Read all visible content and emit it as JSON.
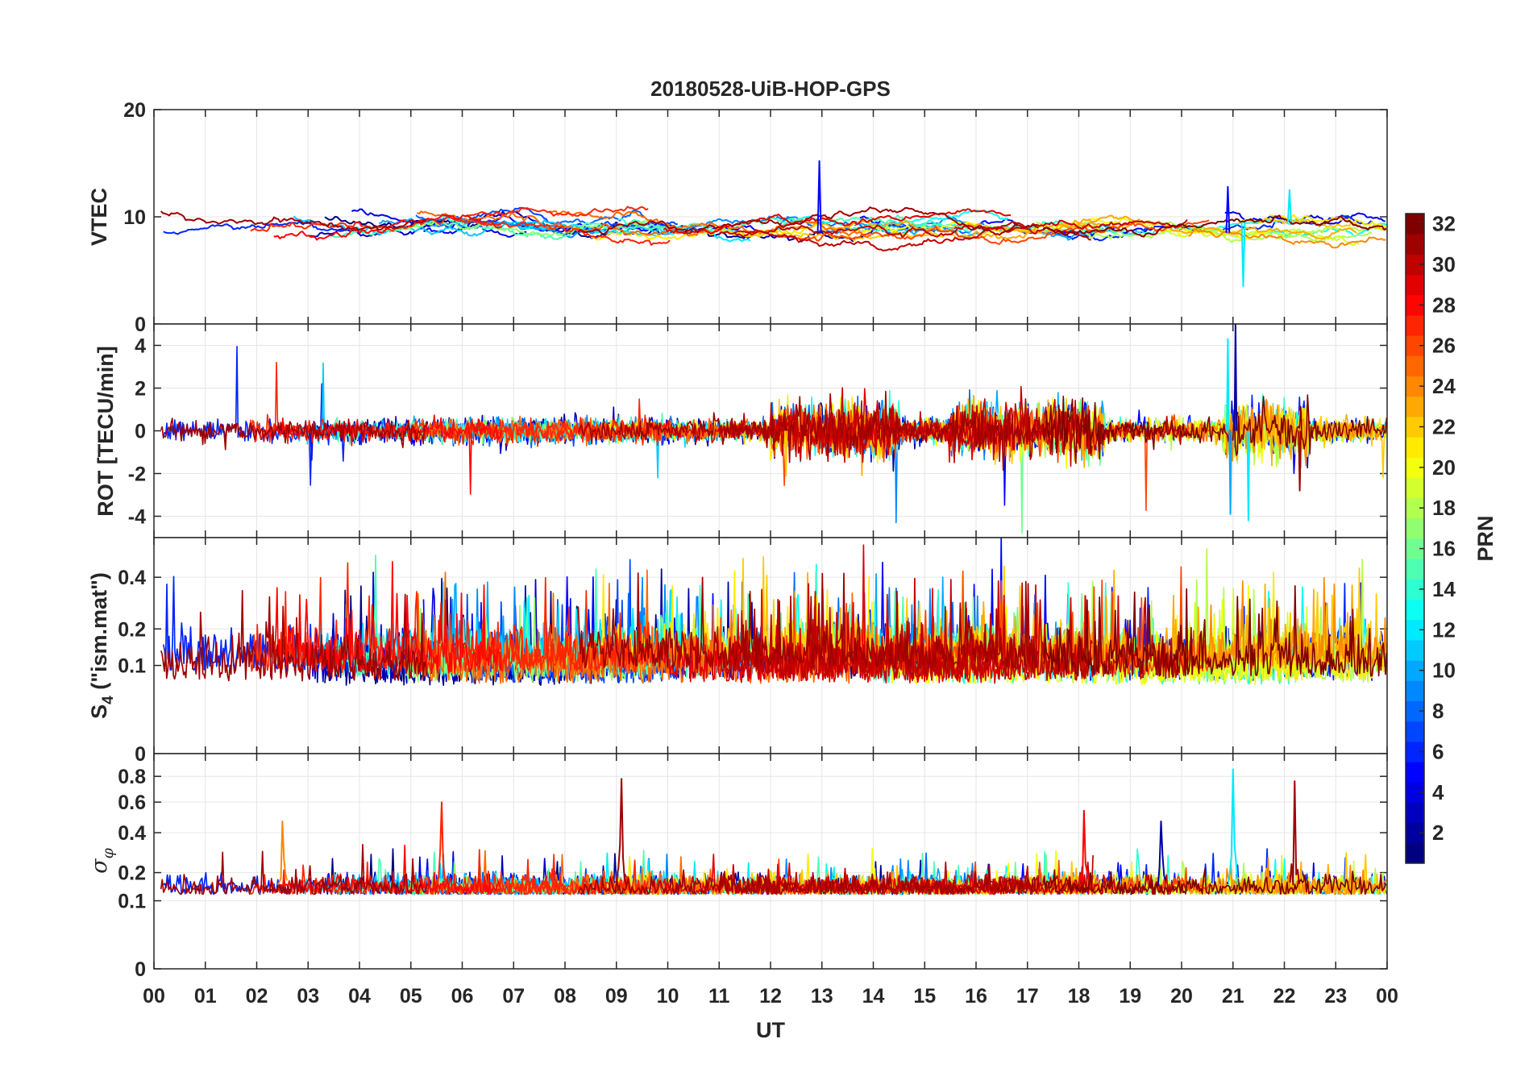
{
  "title": "20180528-UiB-HOP-GPS",
  "x_axis": {
    "label": "UT",
    "range": [
      0,
      24
    ],
    "ticks": [
      "00",
      "01",
      "02",
      "03",
      "04",
      "05",
      "06",
      "07",
      "08",
      "09",
      "10",
      "11",
      "12",
      "13",
      "14",
      "15",
      "16",
      "17",
      "18",
      "19",
      "20",
      "21",
      "22",
      "23",
      "00"
    ]
  },
  "colorbar": {
    "label": "PRN",
    "range": [
      1,
      32
    ],
    "ticks": [
      2,
      4,
      6,
      8,
      10,
      12,
      14,
      16,
      18,
      20,
      22,
      24,
      26,
      28,
      30,
      32
    ],
    "colormap": "jet",
    "colors": [
      "#00008f",
      "#0000ff",
      "#0080ff",
      "#00ffff",
      "#80ff80",
      "#ffff00",
      "#ff8000",
      "#ff0000",
      "#800000"
    ]
  },
  "chart_data": [
    {
      "type": "line",
      "panel": "VTEC",
      "ylabel": "VTEC",
      "ylim": [
        0,
        20
      ],
      "yticks": [
        "0",
        "10",
        "20"
      ],
      "grid": true,
      "description_values": {
        "typical_level": 9,
        "spread": [
          6,
          11
        ],
        "notable_spikes": [
          [
            12.95,
            15.2
          ],
          [
            21.2,
            3.5
          ],
          [
            20.9,
            12.8
          ],
          [
            22.1,
            12.5
          ]
        ]
      }
    },
    {
      "type": "line",
      "panel": "ROT",
      "ylabel": "ROT [TECU/min]",
      "ylim": [
        -5,
        5
      ],
      "yticks": [
        "-4",
        "-2",
        "0",
        "2",
        "4"
      ],
      "grid": true,
      "description_values": {
        "typical_amplitude": 0.4,
        "notable_spikes": [
          [
            21.05,
            5.0
          ],
          [
            20.9,
            4.3
          ],
          [
            21.3,
            -4.2
          ],
          [
            20.95,
            -3.9
          ],
          [
            22.3,
            -2.8
          ],
          [
            12.3,
            -2.1
          ]
        ]
      }
    },
    {
      "type": "line",
      "panel": "S4",
      "ylabel": "S4 (\"ism.mat\")",
      "ylabel_main": "S",
      "ylabel_sub": "4",
      "ylabel_rest": " (\"ism.mat\")",
      "ylim": [
        0,
        0.6
      ],
      "yscale": "sqrt",
      "yticks": [
        "0",
        "0.1",
        "0.2",
        "0.4"
      ],
      "grid": true,
      "description_values": {
        "baseline": 0.06,
        "typical_peak": 0.35,
        "max": 0.6
      }
    },
    {
      "type": "line",
      "panel": "sigma_phi",
      "ylabel": "σφ",
      "ylabel_main": "σ",
      "ylabel_sub": "φ",
      "ylim": [
        0,
        1
      ],
      "yscale": "sqrt",
      "yticks": [
        "0",
        "0.1",
        "0.2",
        "0.4",
        "0.6",
        "0.8"
      ],
      "grid": true,
      "description_values": {
        "baseline": 0.12,
        "notable_spikes": [
          [
            9.1,
            0.78
          ],
          [
            21.0,
            0.86
          ],
          [
            22.2,
            0.76
          ],
          [
            5.6,
            0.6
          ],
          [
            18.1,
            0.54
          ],
          [
            19.6,
            0.47
          ],
          [
            2.5,
            0.47
          ]
        ]
      }
    }
  ]
}
